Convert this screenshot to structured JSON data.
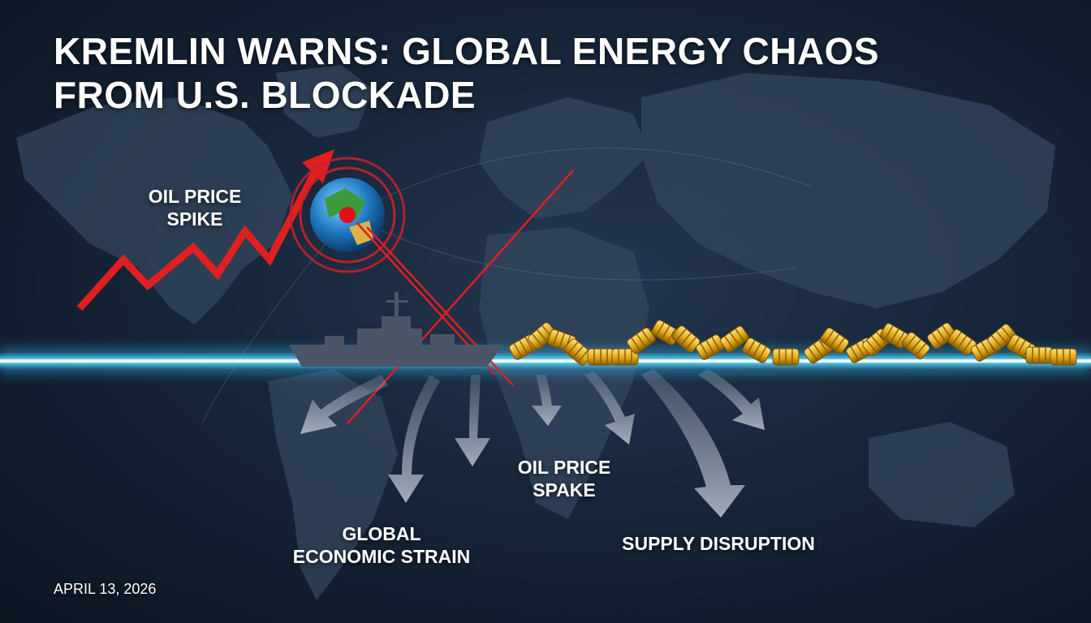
{
  "headline": {
    "line1": "KREMLIN WARNS: GLOBAL ENERGY CHAOS",
    "line2": "FROM U.S. BLOCKADE"
  },
  "labels": {
    "oil_price_spike": [
      "OIL PRICE",
      "SPIKE"
    ],
    "oil_price_spake": [
      "OIL PRICE",
      "SPAKE"
    ],
    "global_economic_strain": [
      "GLOBAL",
      "ECONOMIC STRAIN"
    ],
    "supply_disruption": "SUPPLY DISRUPTION"
  },
  "date": "APRIL 13, 2026",
  "colors": {
    "background": "#17263a",
    "continents": "#34475e",
    "price_line": "#e02020",
    "shipping_lane": "#2ec8ff",
    "barrels": "#e8b81c",
    "arrows": "#8a97a8",
    "text": "#ffffff"
  },
  "icons": [
    "world-map",
    "globe-icon",
    "warship-icon",
    "oil-barrel-icon",
    "arrow-icon"
  ]
}
